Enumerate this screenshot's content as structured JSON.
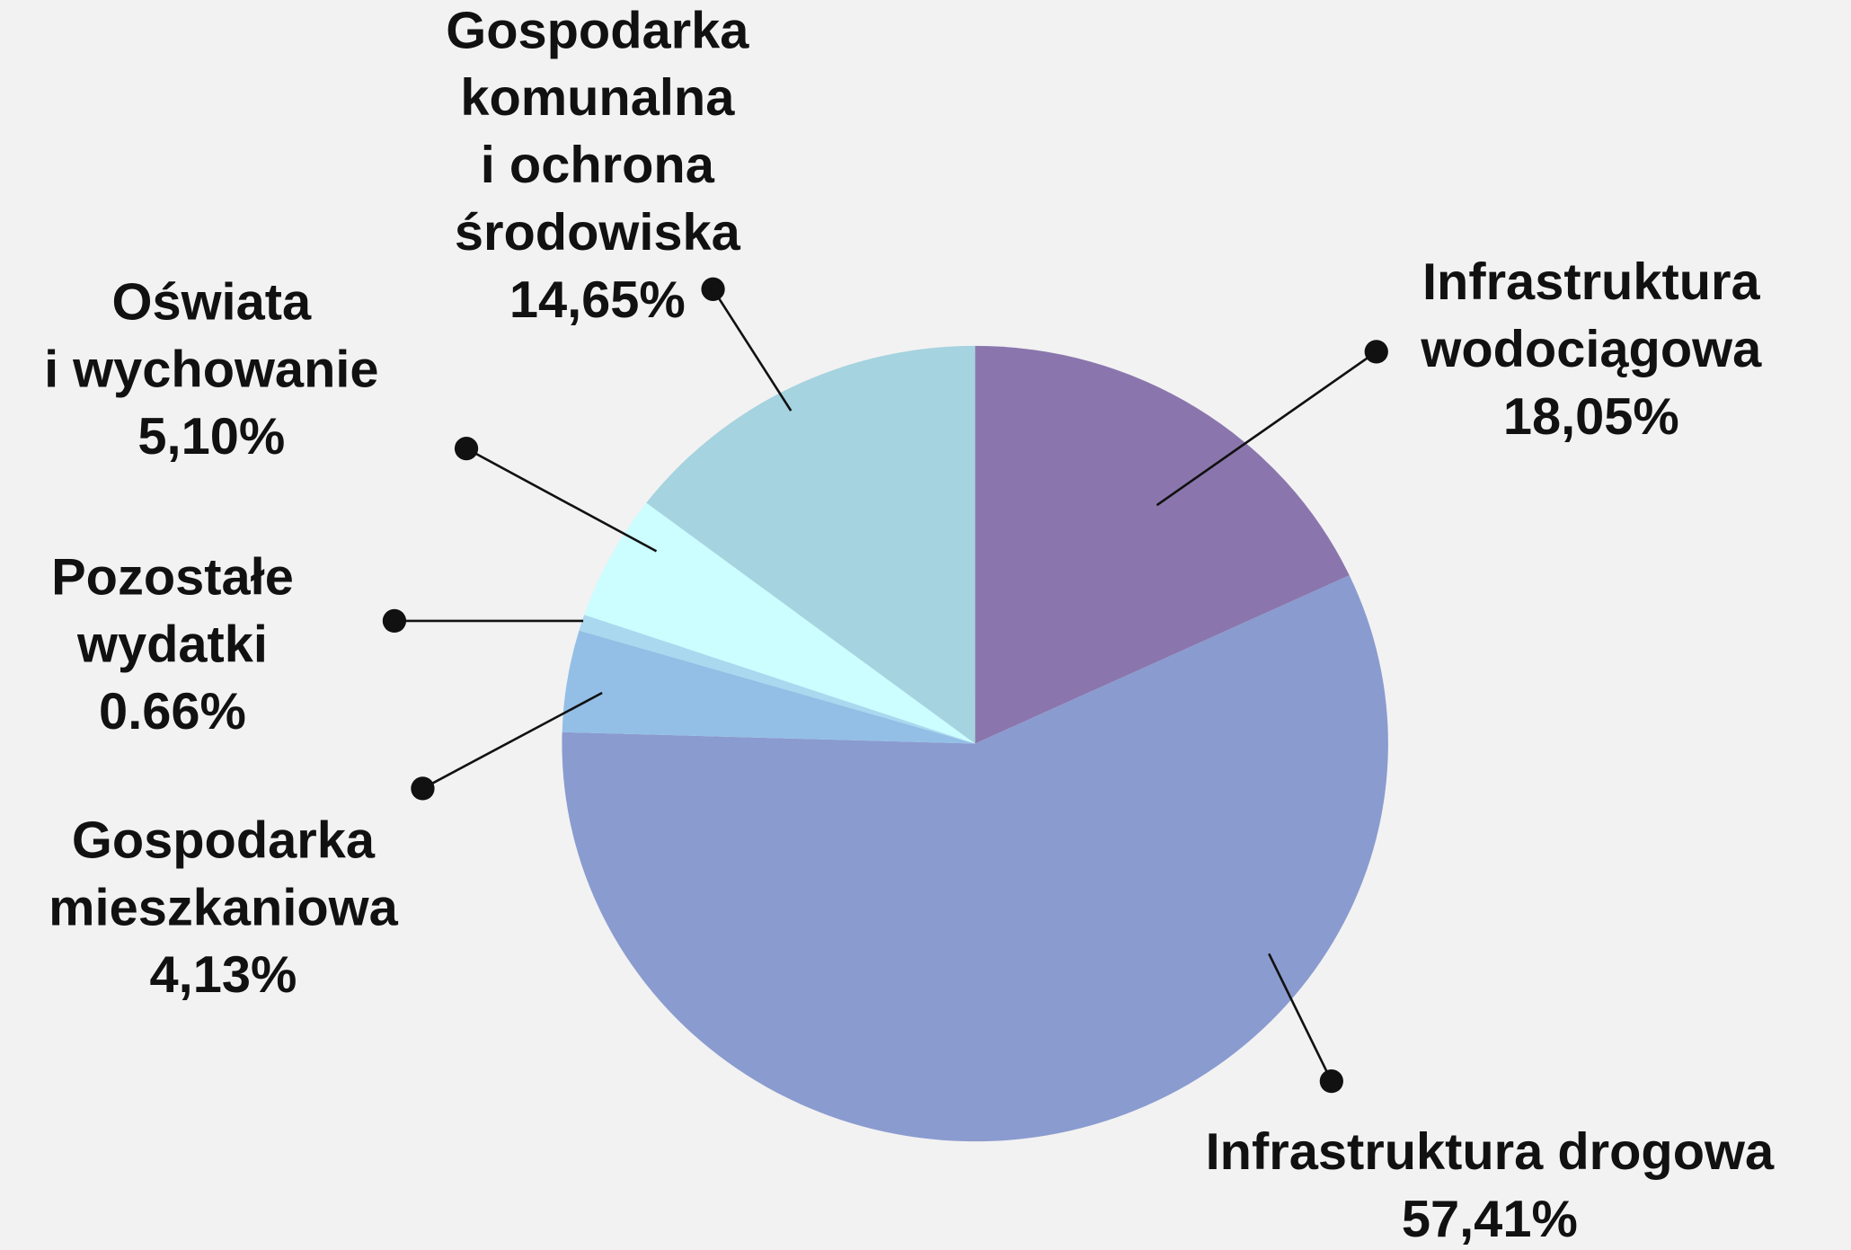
{
  "chart_data": {
    "type": "pie",
    "categories": [
      [
        "Infrastruktura",
        "wodociągowa"
      ],
      [
        "Infrastruktura drogowa"
      ],
      [
        "Gospodarka",
        "mieszkaniowa"
      ],
      [
        "Pozostałe",
        "wydatki"
      ],
      [
        "Oświata",
        "i wychowanie"
      ],
      [
        "Gospodarka",
        "komunalna",
        "i ochrona",
        "środowiska"
      ]
    ],
    "values": [
      18.05,
      57.41,
      4.13,
      0.66,
      5.1,
      14.65
    ],
    "value_labels": [
      "18,05%",
      "57,41%",
      "4,13%",
      "0.66%",
      "5,10%",
      "14,65%"
    ],
    "colors": [
      "#8a76ad",
      "#8a9bcf",
      "#93bfe6",
      "#a9d8ef",
      "#ccfdff",
      "#a5d3df"
    ]
  }
}
